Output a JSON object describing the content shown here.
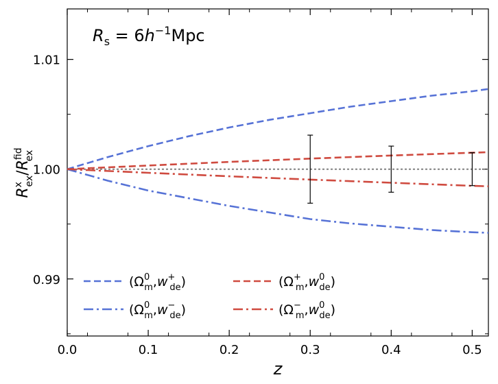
{
  "chart_data": {
    "type": "line",
    "title": "",
    "annotation": {
      "label": "R",
      "label_sub": "s",
      "value": " = 6",
      "unit_var": "h",
      "unit_sup": "−1",
      "unit_tail": "Mpc"
    },
    "xlabel": "z",
    "ylabel": {
      "num": "R",
      "num_sub": "ex",
      "num_sup": "x",
      "den": "R",
      "den_sub": "ex",
      "den_sup": "fid"
    },
    "xlim": [
      0.0,
      0.52
    ],
    "ylim": [
      0.9848,
      1.0146
    ],
    "xticks": [
      0.0,
      0.1,
      0.2,
      0.3,
      0.4,
      0.5
    ],
    "xtick_labels": [
      "0.0",
      "0.1",
      "0.2",
      "0.3",
      "0.4",
      "0.5"
    ],
    "yticks": [
      0.99,
      1.0,
      1.01
    ],
    "ytick_labels": [
      "0.99",
      "1.00",
      "1.01"
    ],
    "grid": false,
    "legend_position": "lower-left",
    "colors": {
      "blue": "#5672d6",
      "red": "#cf4a3f",
      "reference": "#808080",
      "errorbar": "#000000"
    },
    "series": [
      {
        "name": "Omega_m^0, w_de^+",
        "legend": {
          "sup": "0",
          "var": "w",
          "var_sup": "+"
        },
        "color": "blue",
        "style": "dashed",
        "x": [
          0.0,
          0.05,
          0.1,
          0.15,
          0.2,
          0.25,
          0.3,
          0.35,
          0.4,
          0.45,
          0.5,
          0.52
        ],
        "y": [
          1.0,
          1.0011,
          1.0021,
          1.003,
          1.0038,
          1.0045,
          1.0051,
          1.0057,
          1.0062,
          1.0067,
          1.0071,
          1.0073
        ]
      },
      {
        "name": "Omega_m^0, w_de^-",
        "legend": {
          "sup": "0",
          "var": "w",
          "var_sup": "−"
        },
        "color": "blue",
        "style": "dashdot",
        "x": [
          0.0,
          0.05,
          0.1,
          0.15,
          0.2,
          0.25,
          0.3,
          0.35,
          0.4,
          0.45,
          0.5,
          0.52
        ],
        "y": [
          1.0,
          0.99895,
          0.99805,
          0.99735,
          0.99665,
          0.99605,
          0.99545,
          0.99505,
          0.99475,
          0.99445,
          0.99425,
          0.9942
        ]
      },
      {
        "name": "Omega_m^+, w_de^0",
        "legend": {
          "sup": "+",
          "var": "w",
          "var_sup": "0"
        },
        "color": "red",
        "style": "dashed",
        "x": [
          0.0,
          0.1,
          0.2,
          0.3,
          0.4,
          0.5,
          0.52
        ],
        "y": [
          1.0,
          1.00033,
          1.00066,
          1.00096,
          1.00124,
          1.0015,
          1.00155
        ]
      },
      {
        "name": "Omega_m^-, w_de^0",
        "legend": {
          "sup": "−",
          "var": "w",
          "var_sup": "0"
        },
        "color": "red",
        "style": "dashdot",
        "x": [
          0.0,
          0.1,
          0.2,
          0.3,
          0.4,
          0.5,
          0.52
        ],
        "y": [
          1.0,
          0.99967,
          0.99935,
          0.99905,
          0.99876,
          0.99848,
          0.99844
        ]
      }
    ],
    "reference_line": {
      "y": 1.0,
      "style": "dotted"
    },
    "errorbars": [
      {
        "x": 0.3,
        "y": 1.0,
        "yerr": 0.0031
      },
      {
        "x": 0.4,
        "y": 1.0,
        "yerr": 0.0021
      },
      {
        "x": 0.5,
        "y": 1.0,
        "yerr": 0.0015
      }
    ],
    "legend_entries": {
      "greek": "Ω",
      "greek_sub": "m",
      "var_sub": "de"
    }
  }
}
